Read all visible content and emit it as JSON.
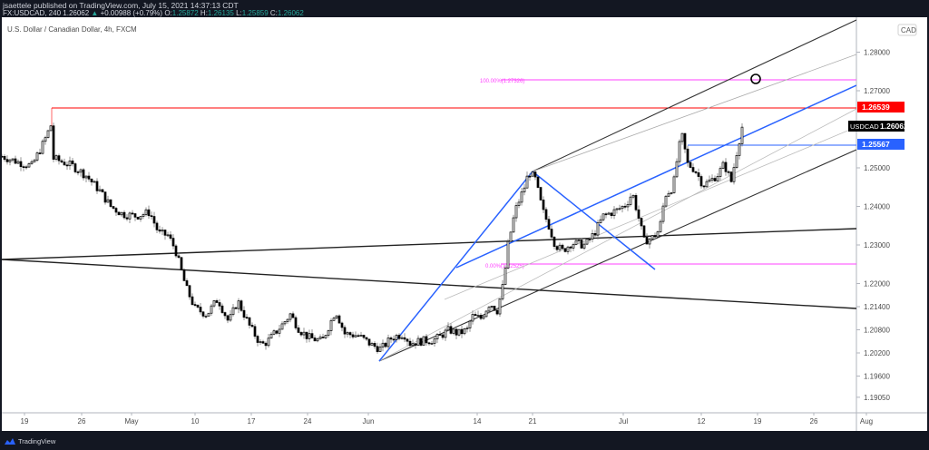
{
  "header": {
    "publisher_line": "jsaettele published on TradingView.com, July 15, 2021 14:37:13 CDT",
    "symbol": "FX:USDCAD, 240",
    "last": "1.26062",
    "change": "+0.00988 (+0.79%)",
    "o_label": "O:",
    "o": "1.25872",
    "h_label": "H:",
    "h": "1.26135",
    "l_label": "L:",
    "l": "1.25859",
    "c_label": "C:",
    "c": "1.26062"
  },
  "chart_title": "U.S. Dollar / Canadian Dollar, 4h, FXCM",
  "footer": {
    "brand": "TradingView"
  },
  "colors": {
    "background": "#131722",
    "pane": "#ffffff",
    "candle": "#000000",
    "wick": "#8a8a8a",
    "fib": "#ff40ff",
    "resistance": "#ff0000",
    "blue": "#2962ff",
    "channel": "#787878"
  },
  "chart_data": {
    "type": "candlestick",
    "title": "U.S. Dollar / Canadian Dollar, 4h, FXCM",
    "symbol": "USDCAD",
    "currency": "CAD",
    "timeframe": "4h",
    "xlabel": "",
    "ylabel": "CAD",
    "x_ticks": [
      "19",
      "26",
      "May",
      "10",
      "17",
      "24",
      "Jun",
      "14",
      "21",
      "Jul",
      "12",
      "19",
      "26",
      "Aug"
    ],
    "y_ticks": [
      "1.28000",
      "1.27000",
      "1.25000",
      "1.24000",
      "1.23000",
      "1.22000",
      "1.21400",
      "1.20800",
      "1.20200",
      "1.19600",
      "1.19050"
    ],
    "ylim": [
      1.189,
      1.289
    ],
    "price_labels": [
      {
        "label": "",
        "value": "1.26539",
        "color": "#ff0000"
      },
      {
        "label": "USDCAD",
        "value": "1.26062",
        "color": "#000000"
      },
      {
        "label": "",
        "value": "1.25567",
        "color": "#2962ff"
      }
    ],
    "annotations": [
      {
        "text": "100.00%(1.27326)",
        "level": 1.27326,
        "color": "#ff40ff"
      },
      {
        "text": "0.00%(1.22525)",
        "level": 1.22525,
        "color": "#ff40ff"
      }
    ],
    "approx_closes": [
      {
        "date": "Apr 19",
        "close": 1.253
      },
      {
        "date": "Apr 22",
        "close": 1.26
      },
      {
        "date": "Apr 26",
        "close": 1.247
      },
      {
        "date": "May 3",
        "close": 1.23
      },
      {
        "date": "May 10",
        "close": 1.213
      },
      {
        "date": "May 14",
        "close": 1.2165
      },
      {
        "date": "May 19",
        "close": 1.205
      },
      {
        "date": "May 24",
        "close": 1.207
      },
      {
        "date": "Jun 1",
        "close": 1.202
      },
      {
        "date": "Jun 10",
        "close": 1.21
      },
      {
        "date": "Jun 17",
        "close": 1.232
      },
      {
        "date": "Jun 18",
        "close": 1.248
      },
      {
        "date": "Jun 25",
        "close": 1.23
      },
      {
        "date": "Jul 2",
        "close": 1.24
      },
      {
        "date": "Jul 6",
        "close": 1.233
      },
      {
        "date": "Jul 9",
        "close": 1.257
      },
      {
        "date": "Jul 13",
        "close": 1.248
      },
      {
        "date": "Jul 15",
        "close": 1.26062
      }
    ]
  }
}
